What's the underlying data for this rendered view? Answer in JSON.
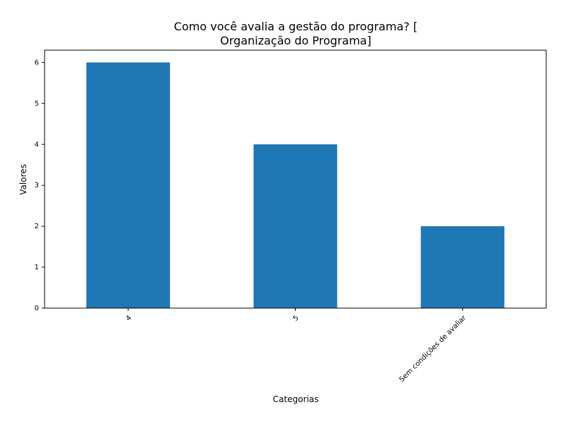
{
  "chart_data": {
    "type": "bar",
    "title_lines": [
      "Como você avalia a gestão do programa? [",
      "Organização do Programa]"
    ],
    "xlabel": "Categorias",
    "ylabel": "Valores",
    "categories": [
      "4",
      "5",
      "Sem condições de avaliar"
    ],
    "values": [
      6,
      4,
      2
    ],
    "ylim": [
      0,
      6.3
    ],
    "yticks": [
      "0",
      "1",
      "2",
      "3",
      "4",
      "5",
      "6"
    ],
    "xtick_rotation_deg": 45,
    "bar_color": "#1f77b4",
    "grid": false,
    "legend": "none"
  }
}
